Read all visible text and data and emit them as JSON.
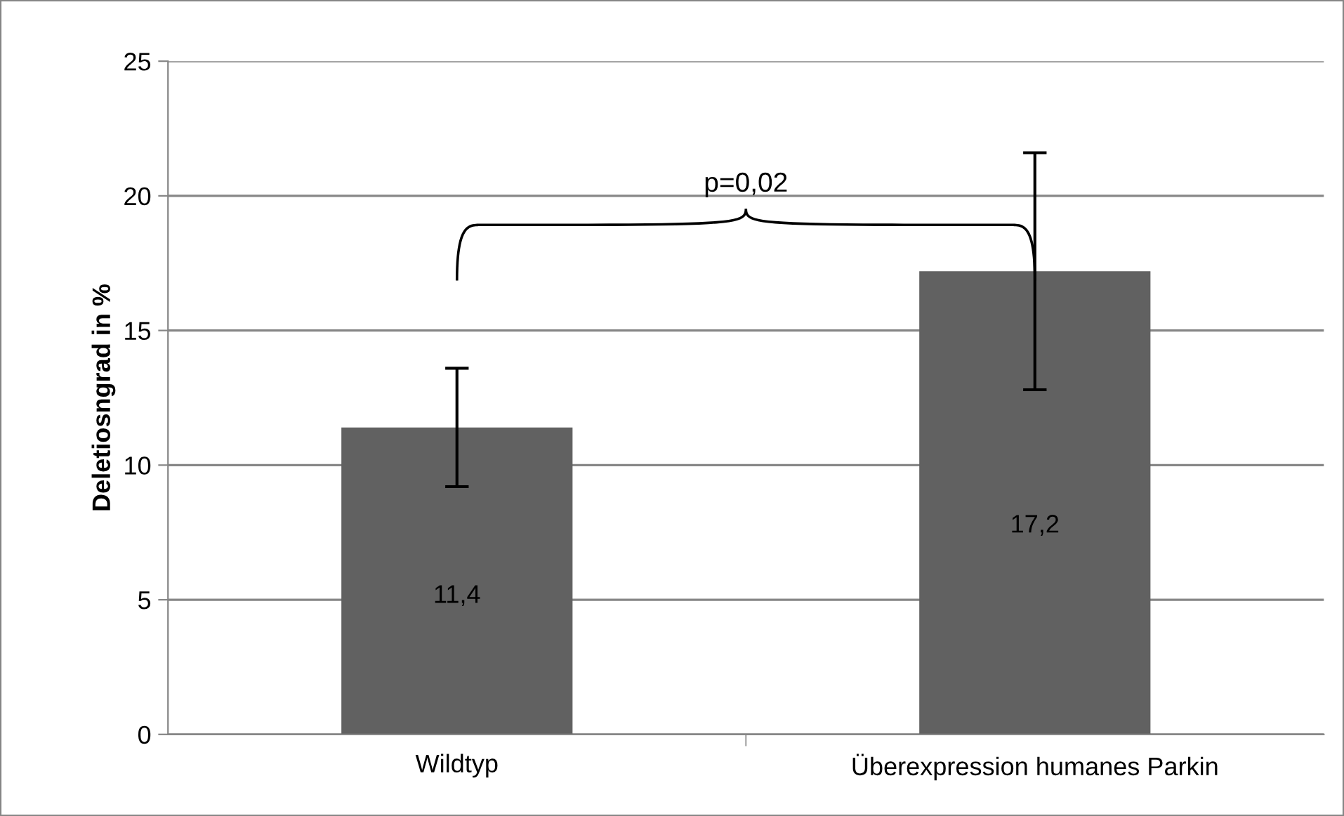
{
  "chart_data": {
    "type": "bar",
    "categories": [
      "Wildtyp",
      "Überexpression humanes Parkin"
    ],
    "values": [
      11.4,
      17.2
    ],
    "errors": [
      2.2,
      4.4
    ],
    "color": "#616161",
    "value_labels": [
      "11,4",
      "17,2"
    ],
    "ylabel": "Deletiosngrad in %",
    "ylim": [
      0,
      25
    ],
    "yticks": [
      0,
      5,
      10,
      15,
      20,
      25
    ],
    "grid": "y",
    "annotations": [
      "p=0,02"
    ]
  }
}
